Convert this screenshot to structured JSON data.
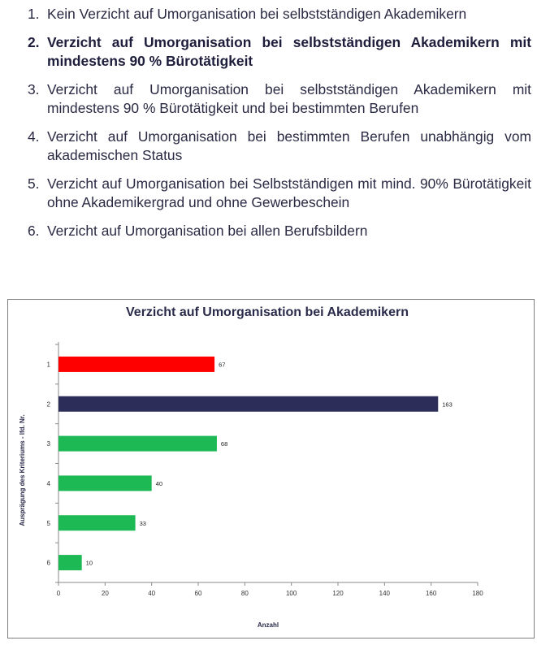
{
  "criteria": [
    {
      "num": "1.",
      "text": "Kein Verzicht auf Umorganisation bei selbstständigen Akademikern",
      "bold": false
    },
    {
      "num": "2.",
      "text": "Verzicht auf Umorganisation bei selbstständigen Akademikern mit mindestens 90 % Bürotätigkeit",
      "bold": true
    },
    {
      "num": "3.",
      "text": "Verzicht auf Umorganisation bei selbstständigen Akademikern mit mindestens 90 % Bürotätigkeit und bei bestimmten Berufen",
      "bold": false
    },
    {
      "num": "4.",
      "text": "Verzicht auf Umorganisation bei bestimmten Berufen unabhängig vom akademischen Status",
      "bold": false
    },
    {
      "num": "5.",
      "text": "Verzicht auf Umorganisation bei Selbstständigen mit mind. 90% Bürotätigkeit ohne Akademikergrad und ohne Gewerbeschein",
      "bold": false
    },
    {
      "num": "6.",
      "text": "Verzicht auf Umorganisation bei allen Berufsbildern",
      "bold": false
    }
  ],
  "chart_data": {
    "type": "bar",
    "orientation": "horizontal",
    "title": "Verzicht auf Umorganisation bei Akademikern",
    "xlabel": "Anzahl",
    "ylabel": "Ausprägung des Kriteriums - lfd. Nr.",
    "categories": [
      "1",
      "2",
      "3",
      "4",
      "5",
      "6"
    ],
    "values": [
      67,
      163,
      68,
      40,
      33,
      10
    ],
    "bar_colors": [
      "#ff0000",
      "#2d2d5a",
      "#1db954",
      "#1db954",
      "#1db954",
      "#1db954"
    ],
    "xlim": [
      0,
      180
    ],
    "xticks": [
      0,
      20,
      40,
      60,
      80,
      100,
      120,
      140,
      160,
      180
    ],
    "grid": false,
    "legend": "none"
  }
}
